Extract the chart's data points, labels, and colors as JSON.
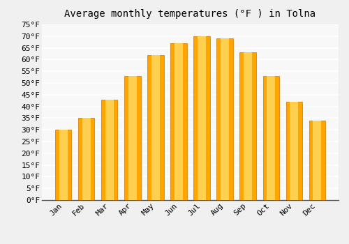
{
  "title": "Average monthly temperatures (°F ) in Tolna",
  "months": [
    "Jan",
    "Feb",
    "Mar",
    "Apr",
    "May",
    "Jun",
    "Jul",
    "Aug",
    "Sep",
    "Oct",
    "Nov",
    "Dec"
  ],
  "values": [
    30,
    35,
    43,
    53,
    62,
    67,
    70,
    69,
    63,
    53,
    42,
    34
  ],
  "bar_color_main": "#FFA500",
  "bar_color_light": "#FFD050",
  "bar_edge_color": "#CC7700",
  "ylim": [
    0,
    75
  ],
  "yticks": [
    0,
    5,
    10,
    15,
    20,
    25,
    30,
    35,
    40,
    45,
    50,
    55,
    60,
    65,
    70,
    75
  ],
  "ylabel_suffix": "°F",
  "background_color": "#f0f0f0",
  "plot_bg_color": "#f8f8f8",
  "grid_color": "#ffffff",
  "title_fontsize": 10,
  "tick_fontsize": 8,
  "font_family": "monospace"
}
